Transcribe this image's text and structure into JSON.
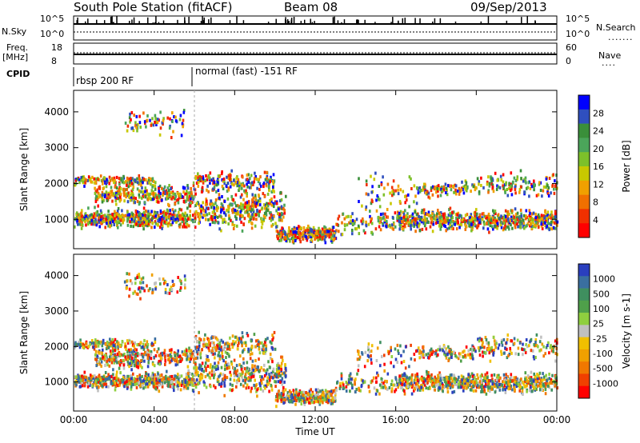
{
  "header": {
    "station": "South Pole Station (fitACF)",
    "beam": "Beam 08",
    "date": "09/Sep/2013"
  },
  "strips": {
    "nsky_label": "N.Sky",
    "nsearch_label": "N.Search",
    "nsky_ticks": [
      "10^5",
      "10^0"
    ],
    "nsearch_ticks": [
      "10^5",
      "10^0"
    ],
    "freq_label_1": "Freq.",
    "freq_label_2": "[MHz]",
    "freq_ticks": [
      "18",
      "8"
    ],
    "nave_label": "Nave",
    "nave_ticks": [
      "60",
      "0"
    ],
    "cpid_label": "CPID",
    "cpid_segments": [
      {
        "text": "rbsp 200 RF",
        "start_hour": 0
      },
      {
        "text": "normal (fast) -151 RF",
        "start_hour": 6
      }
    ]
  },
  "chart_data": [
    {
      "type": "heatmap",
      "ylabel": "Slant Range [km]",
      "xlabel": "Time UT",
      "x_ticks": [
        "00:00",
        "04:00",
        "08:00",
        "12:00",
        "16:00",
        "20:00",
        "00:00"
      ],
      "xlim_hours": [
        0,
        24
      ],
      "y_ticks": [
        1000,
        2000,
        3000,
        4000
      ],
      "ylim": [
        180,
        4600
      ],
      "colorbar": {
        "label": "Power [dB]",
        "ticks": [
          "4",
          "8",
          "12",
          "16",
          "20",
          "24",
          "28"
        ],
        "colors": [
          "#0000ff",
          "#2f4fbf",
          "#3a8f3a",
          "#4ba55a",
          "#7dc02a",
          "#c8c800",
          "#f0a000",
          "#f07000",
          "#f03000",
          "#ff0000"
        ]
      }
    },
    {
      "type": "heatmap",
      "ylabel": "Slant Range [km]",
      "xlabel": "Time UT",
      "x_ticks": [
        "00:00",
        "04:00",
        "08:00",
        "12:00",
        "16:00",
        "20:00",
        "00:00"
      ],
      "xlim_hours": [
        0,
        24
      ],
      "y_ticks": [
        1000,
        2000,
        3000,
        4000
      ],
      "ylim": [
        180,
        4600
      ],
      "colorbar": {
        "label": "Velocity [m s-1]",
        "ticks": [
          "1000",
          "500",
          "100",
          "25",
          "-25",
          "-100",
          "-500",
          "-1000"
        ],
        "colors": [
          "#2a3fbf",
          "#3a6fa0",
          "#3f8f5f",
          "#4fa04a",
          "#8fcf3f",
          "#c0c0c0",
          "#f0c000",
          "#f0a000",
          "#f07800",
          "#f04000",
          "#ff0000"
        ]
      }
    }
  ]
}
